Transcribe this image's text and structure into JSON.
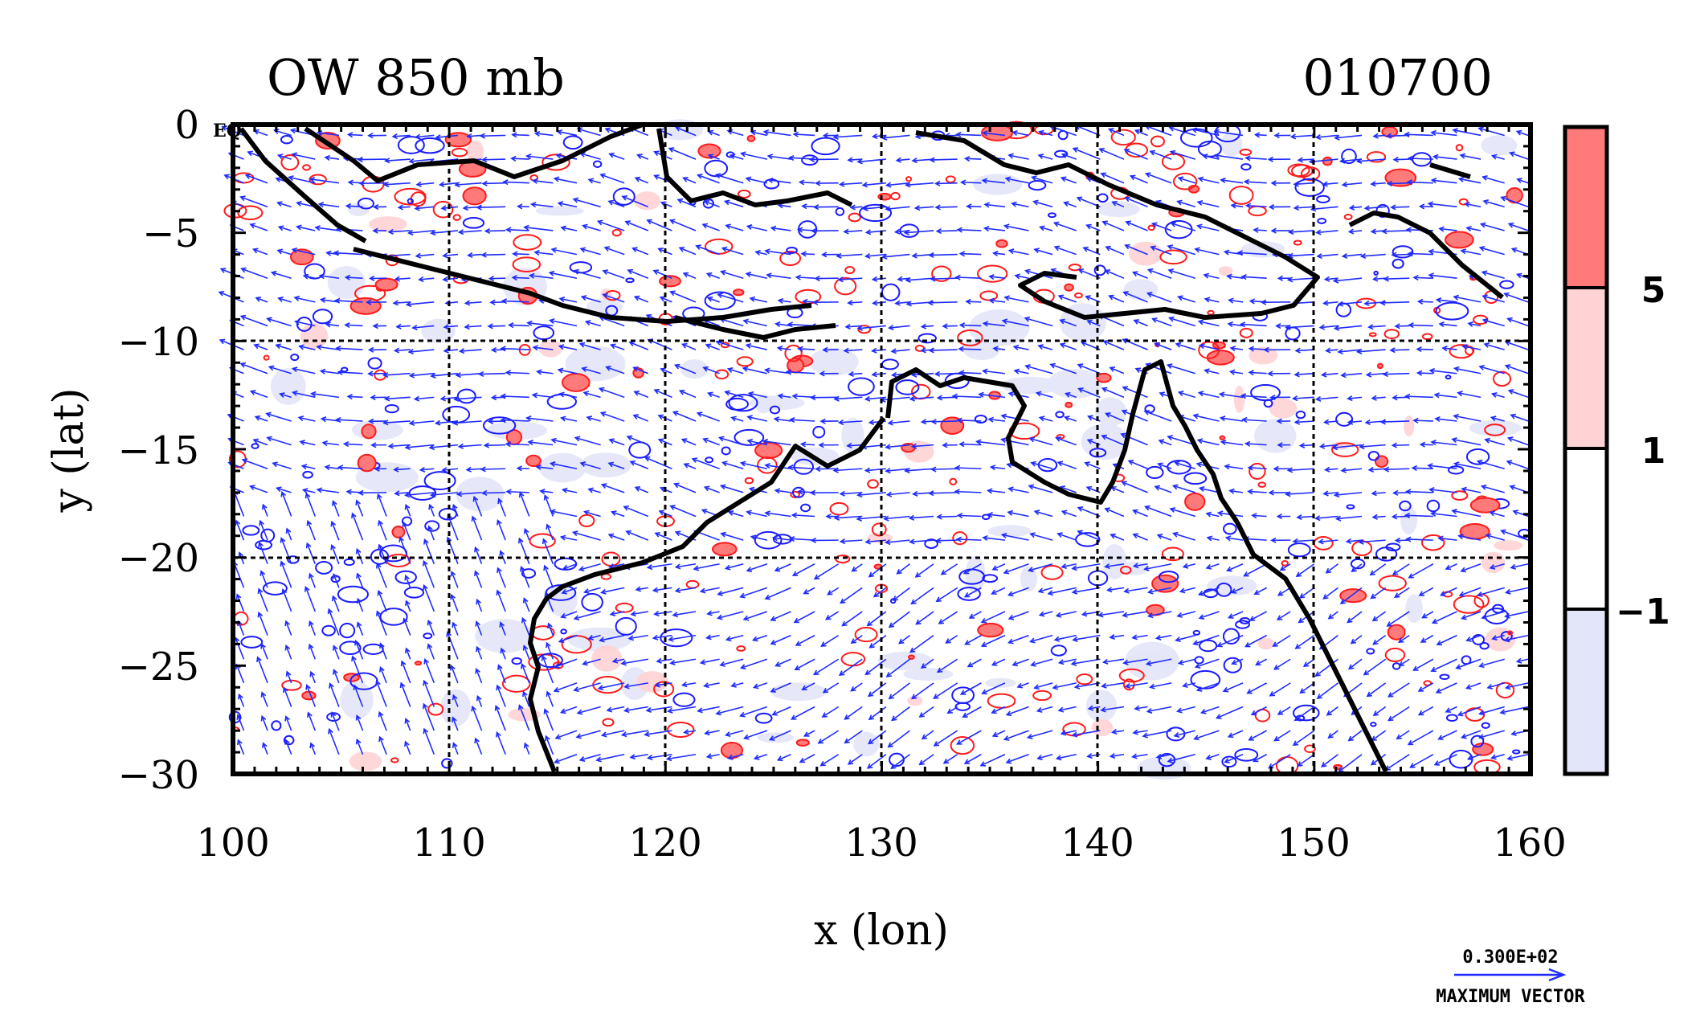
{
  "title_left": "OW 850 mb",
  "title_right": "010700",
  "chart_data": {
    "type": "map",
    "title": "OW 850 mb",
    "timestamp": "010700",
    "xlabel": "x (lon)",
    "ylabel": "y (lat)",
    "xlim": [
      100,
      160
    ],
    "ylim": [
      -30,
      0
    ],
    "x_ticks": [
      "100",
      "110",
      "120",
      "130",
      "140",
      "150",
      "160"
    ],
    "y_ticks": [
      "0",
      "−5",
      "−10",
      "−15",
      "−20",
      "−25",
      "−30"
    ],
    "equator_label": "EQ",
    "grid": true,
    "grid_lines_lon": [
      110,
      120,
      130,
      140,
      150
    ],
    "grid_lines_lat": [
      -10,
      -20
    ],
    "colorbar": {
      "levels": [
        "5",
        "1",
        "−1"
      ],
      "colors": [
        "#ff7a78",
        "#ffd3d4",
        "#ffffff",
        "#e3e5fa"
      ],
      "line_colors": {
        "positive": "#ff1a1a",
        "negative": "#1a1aff"
      }
    },
    "vector_legend": {
      "value": "0.300E+02",
      "label": "MAXIMUM VECTOR"
    },
    "coastline_color": "#000000",
    "vector_color": "#1f2bff"
  }
}
